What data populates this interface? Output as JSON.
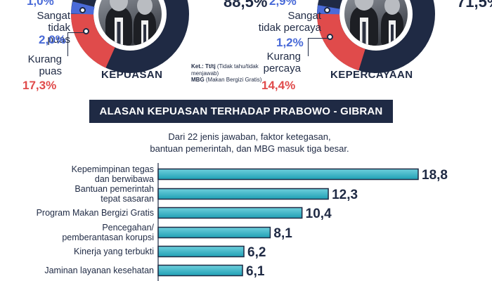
{
  "satisfaction": {
    "top_value_cut": "88,5%",
    "caption": "KEPUASAN",
    "top_partial_value": "1,0%",
    "very_unsatisfied": {
      "label_line1": "Sangat",
      "label_line2": "tidak puas",
      "value": "2,0%"
    },
    "less_satisfied": {
      "label_line1": "Kurang",
      "label_line2": "puas",
      "value": "17,3%"
    }
  },
  "trust": {
    "top_value_cut": "71,5%",
    "caption": "KEPERCAYAAN",
    "top_partial_value": "2,9%",
    "very_distrust": {
      "label_line1": "Sangat",
      "label_line2": "tidak percaya",
      "value": "1,2%"
    },
    "less_trust": {
      "label_line1": "Kurang",
      "label_line2": "percaya",
      "value": "14,4%"
    }
  },
  "note": {
    "title": "Ket.: Tt/tj",
    "line1": " (Tidak tahu/tidak menjawab)",
    "mbg_abbr": "MBG",
    "mbg_full": " (Makan Bergizi Gratis)"
  },
  "banner": {
    "title": "ALASAN KEPUASAN TERHADAP PRABOWO - GIBRAN"
  },
  "subtitle": {
    "line1": "Dari 22 jenis jawaban, faktor ketegasan,",
    "line2": "bantuan pemerintah, dan MBG masuk tiga besar."
  },
  "colors": {
    "navy": "#1f2a44",
    "bar": "#1f9fb4",
    "bar_light": "#6fd0dd",
    "blue_value": "#4a6bd8",
    "red_value": "#e04b4b"
  },
  "chart_data": {
    "type": "bar",
    "orientation": "horizontal",
    "categories": [
      [
        "Kepemimpinan tegas",
        "dan berwibawa"
      ],
      [
        "Bantuan pemerintah",
        "tepat sasaran"
      ],
      [
        "Program Makan Bergizi Gratis"
      ],
      [
        "Pencegahan/",
        "pemberantasan korupsi"
      ],
      [
        "Kinerja yang terbukti"
      ],
      [
        "Jaminan layanan kesehatan"
      ]
    ],
    "values": [
      18.8,
      12.3,
      10.4,
      8.1,
      6.2,
      6.1
    ],
    "value_labels": [
      "18,8",
      "12,3",
      "10,4",
      "8,1",
      "6,2",
      "6,1"
    ],
    "xlim": [
      0,
      18.8
    ],
    "title": "ALASAN KEPUASAN TERHADAP PRABOWO - GIBRAN"
  }
}
